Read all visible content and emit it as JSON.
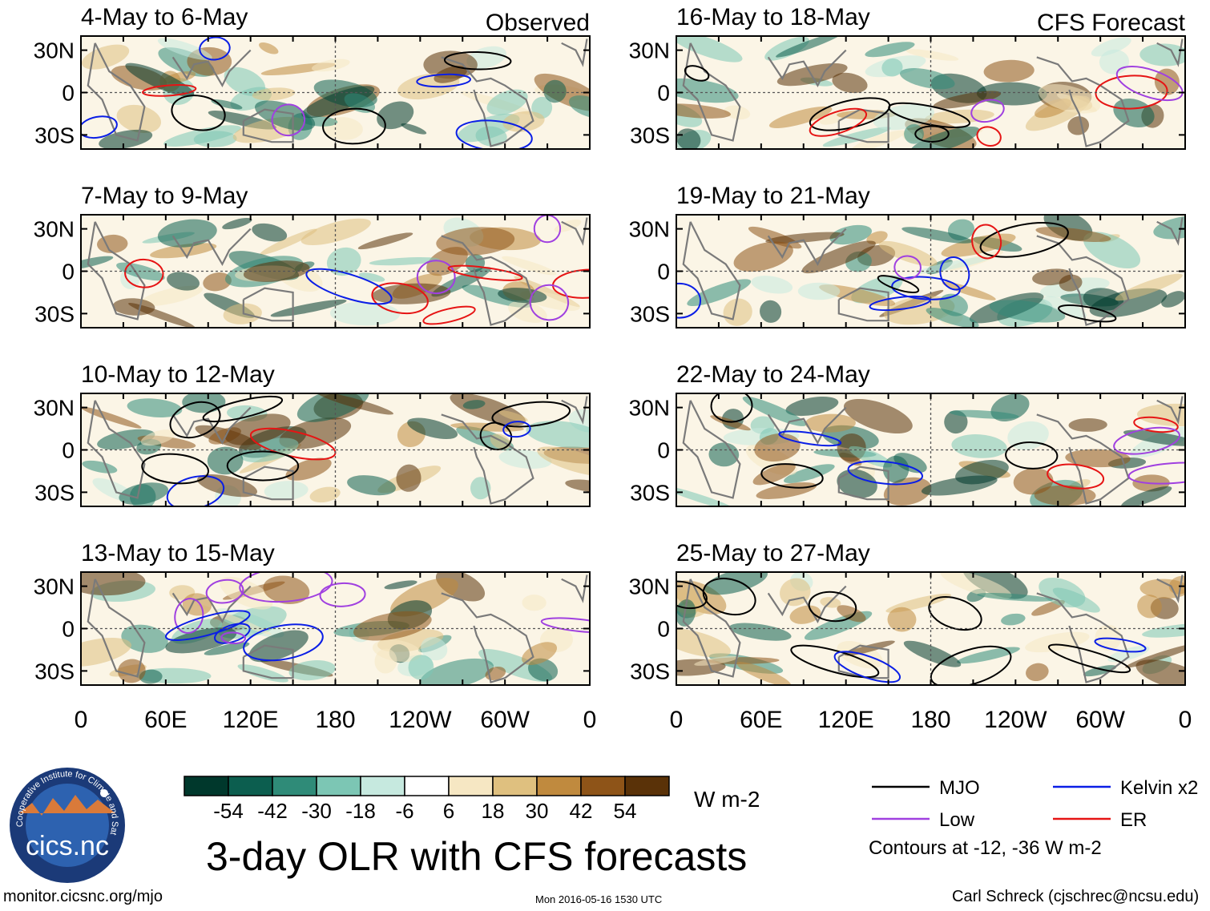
{
  "chart_data": {
    "type": "heatmap",
    "title": "3-day OLR with CFS forecasts",
    "columns": [
      "Observed",
      "CFS Forecast"
    ],
    "panels": [
      {
        "label": "4-May to 6-May",
        "source": "Observed"
      },
      {
        "label": "7-May to 9-May",
        "source": "Observed"
      },
      {
        "label": "10-May to 12-May",
        "source": "Observed"
      },
      {
        "label": "13-May to 15-May",
        "source": "Observed"
      },
      {
        "label": "16-May to 18-May",
        "source": "CFS Forecast"
      },
      {
        "label": "19-May to 21-May",
        "source": "CFS Forecast"
      },
      {
        "label": "22-May to 24-May",
        "source": "CFS Forecast"
      },
      {
        "label": "25-May to 27-May",
        "source": "CFS Forecast"
      }
    ],
    "y_ticks": [
      "30N",
      "0",
      "30S"
    ],
    "x_ticks": [
      "0",
      "60E",
      "120E",
      "180",
      "120W",
      "60W",
      "0"
    ],
    "xlim": [
      0,
      360
    ],
    "ylim": [
      -40,
      40
    ],
    "colorbar": {
      "labels": [
        "-54",
        "-42",
        "-30",
        "-18",
        "-6",
        "6",
        "18",
        "30",
        "42",
        "54"
      ],
      "units": "W m-2",
      "colors": [
        "#00382c",
        "#0c5e4f",
        "#2f8b78",
        "#7cc6b4",
        "#c6e9df",
        "#ffffff",
        "#f6e7c3",
        "#dfc07f",
        "#c08a3e",
        "#8e5418",
        "#5a3208"
      ]
    },
    "legend": [
      {
        "name": "MJO",
        "color": "#000000"
      },
      {
        "name": "Kelvin x2",
        "color": "#0a1ee6"
      },
      {
        "name": "Low",
        "color": "#a040e0"
      },
      {
        "name": "ER",
        "color": "#e61414"
      }
    ],
    "contour_note": "Contours at -12, -36 W m-2"
  },
  "logo_text": "cics.nc",
  "logo_ring_text": "Cooperative Institute for Climate and Satellites",
  "footer": {
    "url": "monitor.cicsnc.org/mjo",
    "timestamp": "Mon 2016-05-16 1530 UTC",
    "author": "Carl Schreck (cjschrec@ncsu.edu)"
  }
}
